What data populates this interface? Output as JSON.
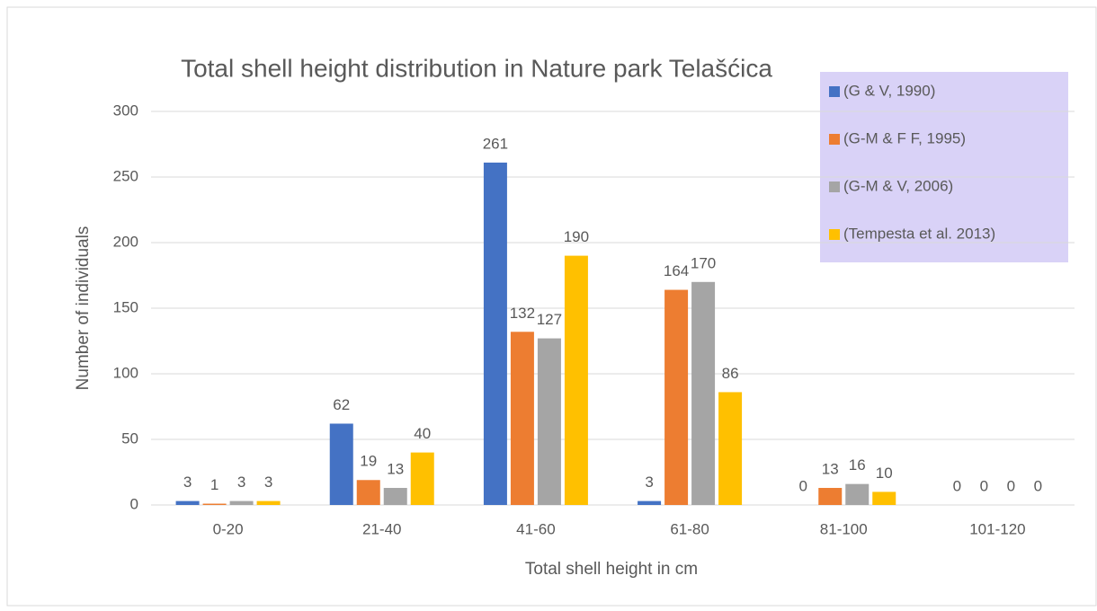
{
  "chart_data": {
    "type": "bar",
    "title": "Total shell height distribution in Nature park Telašćica",
    "x_label": "Total shell height in cm",
    "y_label": "Number of individuals",
    "categories": [
      "0-20",
      "21-40",
      "41-60",
      "61-80",
      "81-100",
      "101-120"
    ],
    "series": [
      {
        "name": "(G & V, 1990)",
        "color": "#4472c4",
        "values": [
          3,
          62,
          261,
          3,
          0,
          0
        ]
      },
      {
        "name": "(G-M & F F, 1995)",
        "color": "#ed7d31",
        "values": [
          1,
          19,
          132,
          164,
          13,
          0
        ]
      },
      {
        "name": "(G-M & V, 2006)",
        "color": "#a5a5a5",
        "values": [
          3,
          13,
          127,
          170,
          16,
          0
        ]
      },
      {
        "name": "(Tempesta et al. 2013)",
        "color": "#ffc000",
        "values": [
          3,
          40,
          190,
          86,
          10,
          0
        ]
      }
    ],
    "ylim": [
      0,
      300
    ],
    "yticks": [
      0,
      50,
      100,
      150,
      200,
      250,
      300
    ],
    "grid": true,
    "legend": "top-right"
  }
}
